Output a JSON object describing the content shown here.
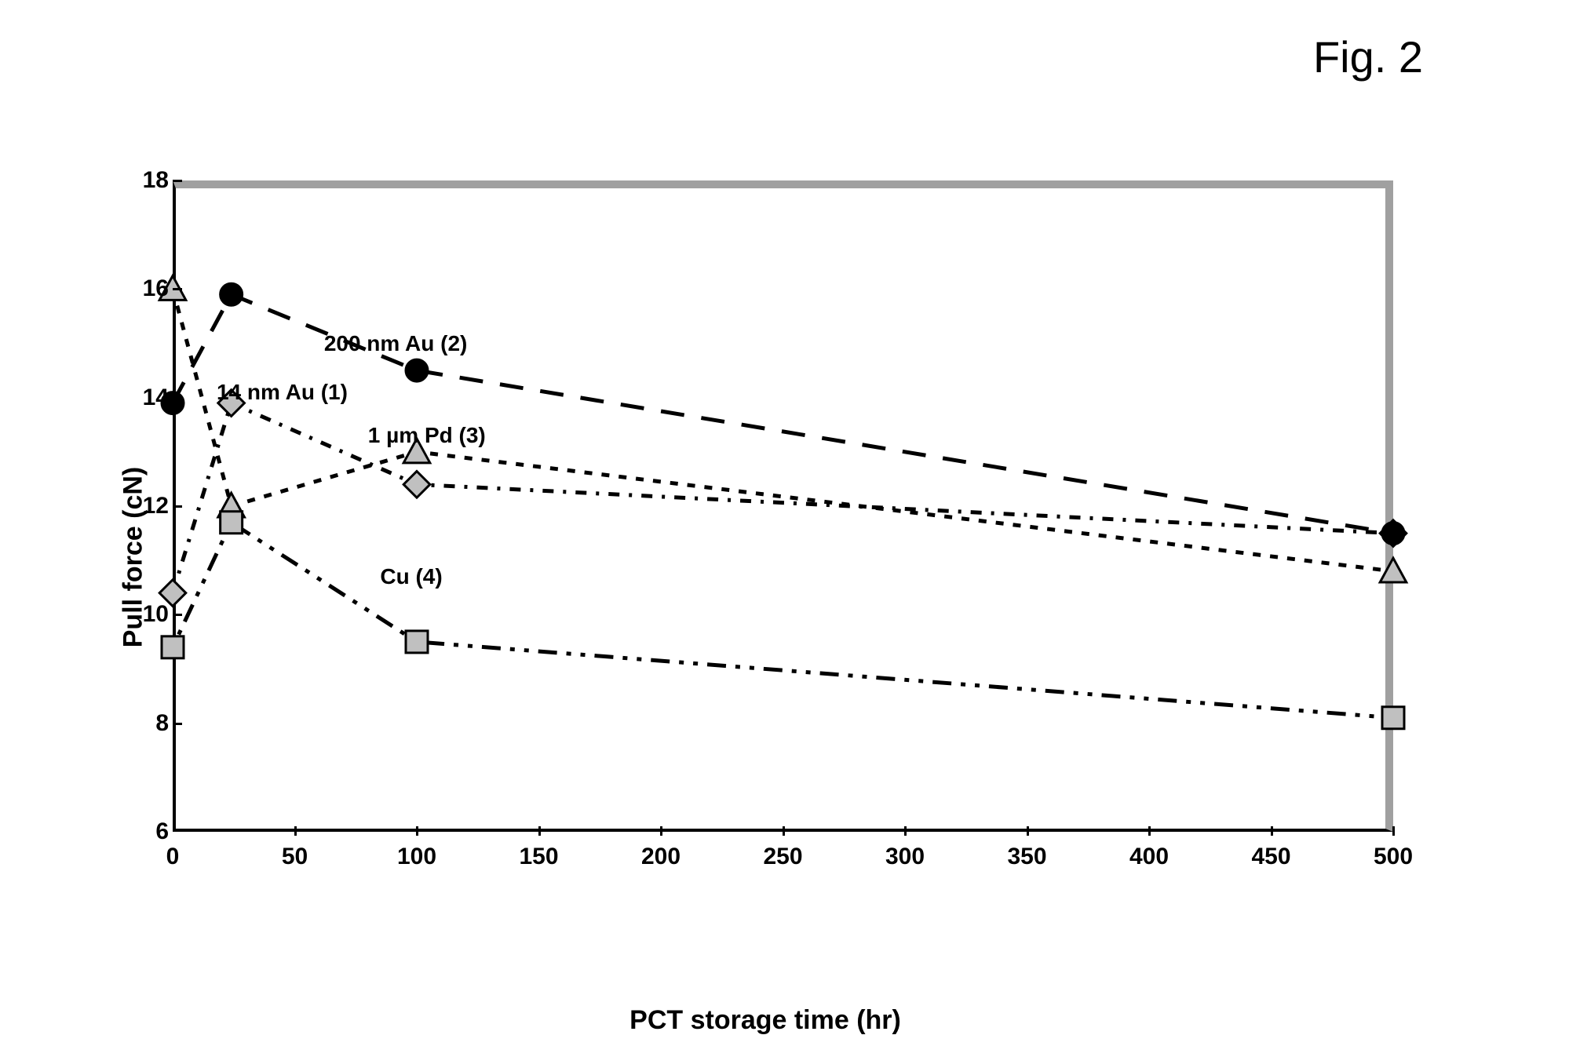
{
  "figure_title": "Fig. 2",
  "chart": {
    "type": "line",
    "x_axis": {
      "label": "PCT storage time (hr)",
      "min": 0,
      "max": 500,
      "tick_step": 50,
      "ticks": [
        0,
        50,
        100,
        150,
        200,
        250,
        300,
        350,
        400,
        450,
        500
      ]
    },
    "y_axis": {
      "label": "Pull force (cN)",
      "min": 6,
      "max": 18,
      "tick_step": 2,
      "ticks": [
        6,
        8,
        10,
        12,
        14,
        16,
        18
      ]
    },
    "background_color": "#ffffff",
    "border_color_bl": "#000000",
    "border_color_tr": "#a0a0a0",
    "text_color": "#000000",
    "title_fontsize": 56,
    "axis_label_fontsize": 34,
    "tick_label_fontsize": 30,
    "series_label_fontsize": 28,
    "line_width": 5,
    "marker_size": 14,
    "series": [
      {
        "name": "14 nm Au (1)",
        "label_pos": {
          "x": 18,
          "y": 14.1
        },
        "marker": "diamond",
        "dash": "14,12,4,12",
        "color": "#000000",
        "fill": "#c0c0c0",
        "data": [
          {
            "x": 0,
            "y": 10.4
          },
          {
            "x": 24,
            "y": 13.9
          },
          {
            "x": 100,
            "y": 12.4
          },
          {
            "x": 500,
            "y": 11.5
          }
        ]
      },
      {
        "name": "200 nm Au (2)",
        "label_pos": {
          "x": 62,
          "y": 15.0
        },
        "marker": "circle",
        "dash": "30,22",
        "color": "#000000",
        "fill": "#000000",
        "data": [
          {
            "x": 0,
            "y": 13.9
          },
          {
            "x": 24,
            "y": 15.9
          },
          {
            "x": 100,
            "y": 14.5
          },
          {
            "x": 500,
            "y": 11.5
          }
        ]
      },
      {
        "name": "1 µm Pd (3)",
        "label_pos": {
          "x": 80,
          "y": 13.3
        },
        "marker": "triangle",
        "dash": "10,12",
        "color": "#000000",
        "fill": "#c0c0c0",
        "data": [
          {
            "x": 0,
            "y": 16.0
          },
          {
            "x": 24,
            "y": 12.0
          },
          {
            "x": 100,
            "y": 13.0
          },
          {
            "x": 500,
            "y": 10.8
          }
        ]
      },
      {
        "name": "Cu (4)",
        "label_pos": {
          "x": 85,
          "y": 10.7
        },
        "marker": "square",
        "dash": "6,12,6,12,24,12",
        "color": "#000000",
        "fill": "#c0c0c0",
        "data": [
          {
            "x": 0,
            "y": 9.4
          },
          {
            "x": 24,
            "y": 11.7
          },
          {
            "x": 100,
            "y": 9.5
          },
          {
            "x": 500,
            "y": 8.1
          }
        ]
      }
    ]
  }
}
